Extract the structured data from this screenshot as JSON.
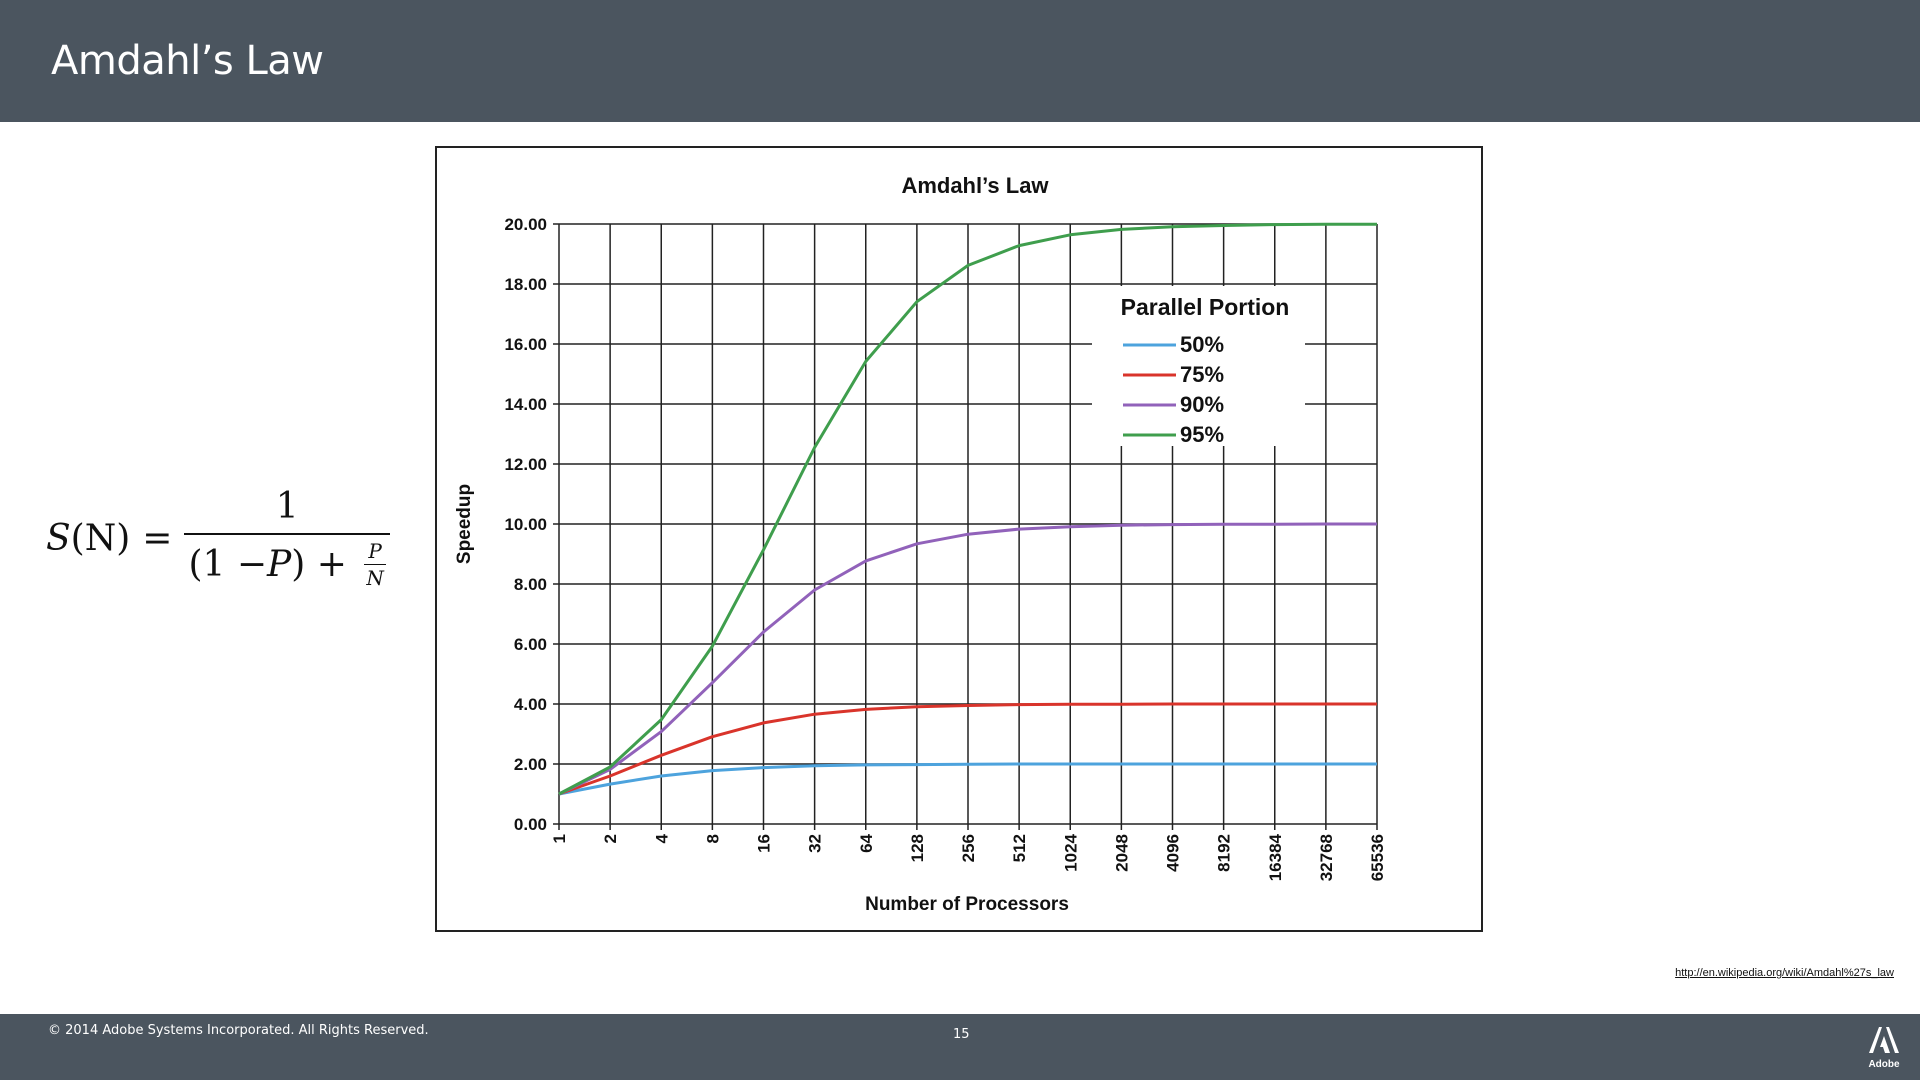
{
  "slide": {
    "title": "Amdahl’s Law",
    "source_url": "http://en.wikipedia.org/wiki/Amdahl%27s_law",
    "footer": {
      "copyright": "© 2014 Adobe Systems Incorporated.  All Rights Reserved.",
      "page_number": "15",
      "brand": "Adobe"
    }
  },
  "formula": {
    "lhs_var": "S",
    "lhs_arg": "(N)",
    "equals": "=",
    "numerator": "1",
    "denominator_left": "(1 − ",
    "denominator_var": "P",
    "denominator_right": ") + ",
    "small_numerator": "P",
    "small_denominator": "N"
  },
  "chart_data": {
    "type": "line",
    "title": "Amdahl’s Law",
    "xlabel": "Number of Processors",
    "ylabel": "Speedup",
    "x_scale": "log2",
    "categories": [
      "1",
      "2",
      "4",
      "8",
      "16",
      "32",
      "64",
      "128",
      "256",
      "512",
      "1024",
      "2048",
      "4096",
      "8192",
      "16384",
      "32768",
      "65536"
    ],
    "y_ticks": [
      "0.00",
      "2.00",
      "4.00",
      "6.00",
      "8.00",
      "10.00",
      "12.00",
      "14.00",
      "16.00",
      "18.00",
      "20.00"
    ],
    "ylim": [
      0,
      20
    ],
    "grid": true,
    "legend": {
      "title": "Parallel Portion",
      "placement": "top-right"
    },
    "series": [
      {
        "name": "50%",
        "color": "#4da3dd",
        "values": [
          1,
          1.33,
          1.6,
          1.78,
          1.88,
          1.94,
          1.97,
          1.98,
          1.99,
          2.0,
          2.0,
          2.0,
          2.0,
          2.0,
          2.0,
          2.0,
          2.0
        ]
      },
      {
        "name": "75%",
        "color": "#d9342b",
        "values": [
          1,
          1.6,
          2.29,
          2.91,
          3.37,
          3.66,
          3.82,
          3.91,
          3.95,
          3.98,
          3.99,
          3.99,
          4.0,
          4.0,
          4.0,
          4.0,
          4.0
        ]
      },
      {
        "name": "90%",
        "color": "#9162ba",
        "values": [
          1,
          1.82,
          3.08,
          4.71,
          6.4,
          7.8,
          8.77,
          9.34,
          9.66,
          9.83,
          9.91,
          9.96,
          9.98,
          9.99,
          9.99,
          10.0,
          10.0
        ]
      },
      {
        "name": "95%",
        "color": "#3f9e4d",
        "values": [
          1,
          1.9,
          3.48,
          5.93,
          9.14,
          12.55,
          15.42,
          17.41,
          18.62,
          19.28,
          19.64,
          19.82,
          19.91,
          19.95,
          19.98,
          19.99,
          19.99
        ]
      }
    ]
  }
}
